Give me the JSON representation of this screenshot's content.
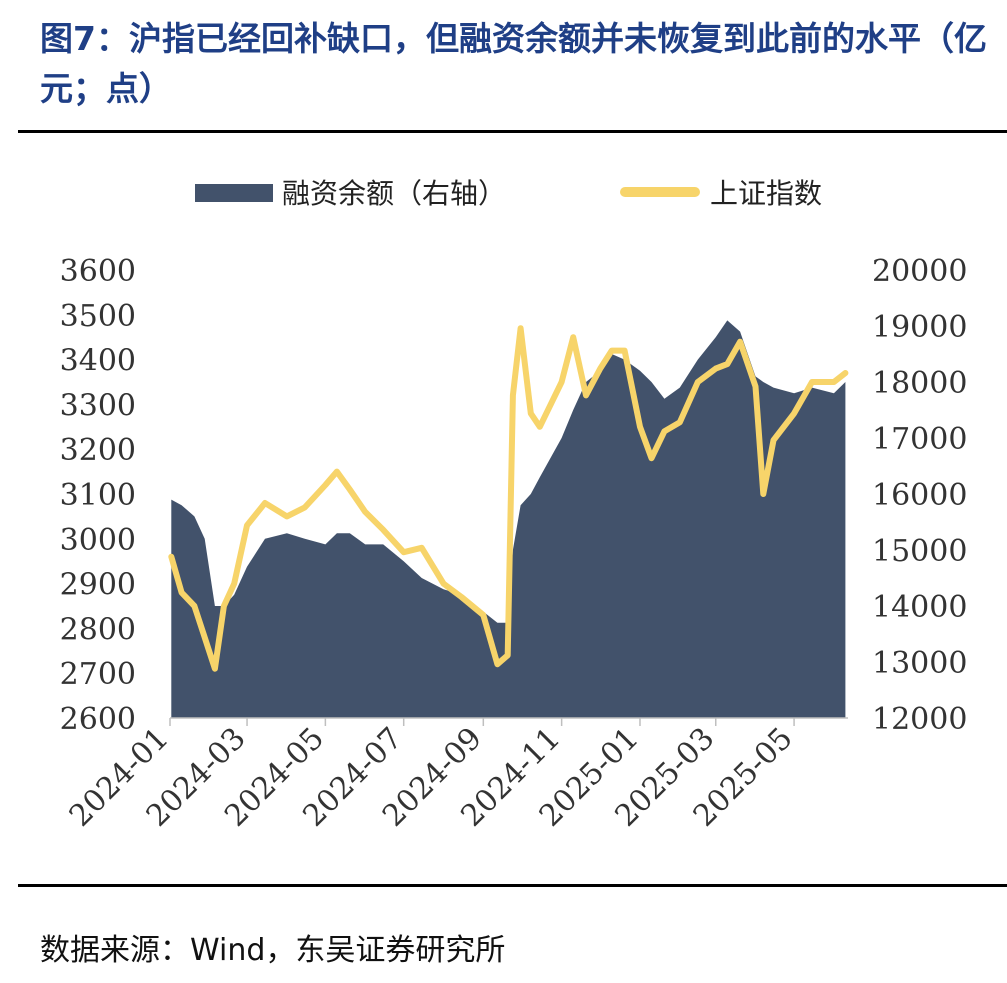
{
  "title": "图7：沪指已经回补缺口，但融资余额并未恢复到此前的水平（亿元；点）",
  "source": "数据来源：Wind，东吴证券研究所",
  "colors": {
    "title": "#1f3f86",
    "area": "#42526b",
    "line": "#f7d46a"
  },
  "chart_data": {
    "type": "line",
    "x": [
      "2024-01-02",
      "2024-01-10",
      "2024-01-20",
      "2024-01-28",
      "2024-02-05",
      "2024-02-12",
      "2024-02-20",
      "2024-03-01",
      "2024-03-15",
      "2024-04-01",
      "2024-04-15",
      "2024-05-01",
      "2024-05-10",
      "2024-05-20",
      "2024-06-01",
      "2024-06-15",
      "2024-07-01",
      "2024-07-15",
      "2024-08-01",
      "2024-08-15",
      "2024-09-01",
      "2024-09-12",
      "2024-09-20",
      "2024-09-24",
      "2024-09-30",
      "2024-10-08",
      "2024-10-15",
      "2024-11-01",
      "2024-11-10",
      "2024-11-20",
      "2024-12-01",
      "2024-12-10",
      "2024-12-20",
      "2025-01-01",
      "2025-01-10",
      "2025-01-20",
      "2025-02-01",
      "2025-02-15",
      "2025-03-01",
      "2025-03-10",
      "2025-03-20",
      "2025-04-01",
      "2025-04-07",
      "2025-04-15",
      "2025-05-01",
      "2025-05-15",
      "2025-06-01",
      "2025-06-10"
    ],
    "series": [
      {
        "name": "融资余额（右轴）",
        "axis": "right",
        "style": "area",
        "values": [
          15900,
          15800,
          15600,
          15200,
          14000,
          14000,
          14200,
          14700,
          15200,
          15300,
          15200,
          15100,
          15300,
          15300,
          15100,
          15100,
          14800,
          14500,
          14300,
          14200,
          13900,
          13700,
          13700,
          15000,
          15800,
          16000,
          16300,
          17000,
          17500,
          18000,
          18200,
          18500,
          18400,
          18200,
          18000,
          17700,
          17900,
          18400,
          18800,
          19100,
          18900,
          18100,
          18000,
          17900,
          17800,
          17900,
          17800,
          18000
        ]
      },
      {
        "name": "上证指数",
        "axis": "left",
        "style": "line",
        "values": [
          2960,
          2880,
          2850,
          2780,
          2710,
          2850,
          2900,
          3030,
          3080,
          3050,
          3070,
          3120,
          3150,
          3110,
          3060,
          3020,
          2970,
          2980,
          2900,
          2870,
          2830,
          2720,
          2740,
          3320,
          3470,
          3280,
          3250,
          3350,
          3450,
          3320,
          3380,
          3420,
          3420,
          3250,
          3180,
          3240,
          3260,
          3350,
          3380,
          3390,
          3440,
          3340,
          3100,
          3220,
          3280,
          3350,
          3350,
          3370
        ]
      }
    ],
    "left_axis": {
      "min": 2600,
      "max": 3600,
      "ticks": [
        "3600",
        "3500",
        "3400",
        "3300",
        "3200",
        "3100",
        "3000",
        "2900",
        "2800",
        "2700",
        "2600"
      ]
    },
    "right_axis": {
      "min": 12000,
      "max": 20000,
      "ticks": [
        "20000",
        "19000",
        "18000",
        "17000",
        "16000",
        "15000",
        "14000",
        "13000",
        "12000"
      ]
    },
    "x_ticks": [
      "2024-01",
      "2024-03",
      "2024-05",
      "2024-07",
      "2024-09",
      "2024-11",
      "2025-01",
      "2025-03",
      "2025-05"
    ],
    "legend": [
      "融资余额（右轴）",
      "上证指数"
    ],
    "legend_position": "top-center"
  }
}
